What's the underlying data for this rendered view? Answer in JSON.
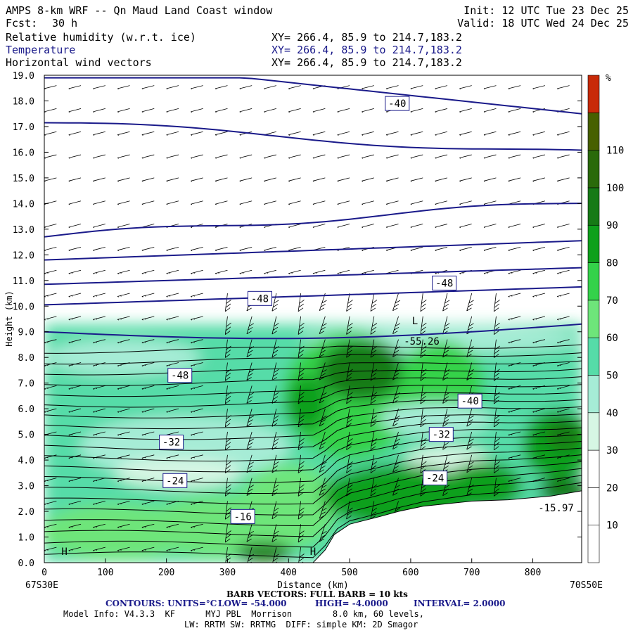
{
  "header": {
    "title": "AMPS 8-km WRF -- Qn Maud Land Coast window",
    "fcst_label": "Fcst:",
    "fcst_value": "30 h",
    "init": "Init: 12 UTC Tue 23 Dec 25",
    "valid": "Valid: 18 UTC Wed 24 Dec 25",
    "fields": [
      {
        "name": "Relative humidity (w.r.t. ice)",
        "xy": "XY= 266.4, 85.9 to 214.7,183.2"
      },
      {
        "name": "Temperature",
        "xy": "XY= 266.4, 85.9 to 214.7,183.2"
      },
      {
        "name": "Horizontal wind vectors",
        "xy": "XY= 266.4, 85.9 to 214.7,183.2"
      }
    ]
  },
  "chart_data": {
    "type": "heatmap",
    "title": "AMPS 8-km WRF -- Qn Maud Land Coast window",
    "xlabel": "Distance (km)",
    "ylabel": "Height (km)",
    "xlim": [
      0,
      880
    ],
    "ylim": [
      0,
      19
    ],
    "x_ticks": [
      0,
      100,
      200,
      300,
      400,
      500,
      600,
      700,
      800
    ],
    "y_ticks": [
      "0.0",
      "1.0",
      "2.0",
      "3.0",
      "4.0",
      "5.0",
      "6.0",
      "7.0",
      "8.0",
      "9.0",
      "10.0",
      "11.0",
      "12.0",
      "13.0",
      "14.0",
      "15.0",
      "16.0",
      "17.0",
      "18.0",
      "19.0"
    ],
    "x_left_label": "67S30E",
    "x_right_label": "70S50E",
    "colorbar": {
      "unit": "%",
      "levels": [
        10,
        20,
        30,
        40,
        50,
        60,
        70,
        80,
        90,
        100,
        110
      ],
      "colors": [
        "#ffffff",
        "#ffffff",
        "#ffffff",
        "#d6f6e4",
        "#a6ecd6",
        "#56dca8",
        "#6ee57a",
        "#34d24a",
        "#0ea01c",
        "#167a16",
        "#2a6a0a",
        "#476000",
        "#c82a08"
      ]
    },
    "temperature_contours": {
      "units": "°C",
      "low": "-54.000",
      "high": "-4.0000",
      "interval": "2.0000"
    },
    "contour_labels": [
      {
        "text": "-40",
        "x": 578,
        "y": 17.9
      },
      {
        "text": "-48",
        "x": 655,
        "y": 10.9
      },
      {
        "text": "-48",
        "x": 353,
        "y": 10.3
      },
      {
        "text": "-48",
        "x": 222,
        "y": 7.3
      },
      {
        "text": "-40",
        "x": 697,
        "y": 6.3
      },
      {
        "text": "-32",
        "x": 650,
        "y": 5.0
      },
      {
        "text": "-32",
        "x": 208,
        "y": 4.7
      },
      {
        "text": "-24",
        "x": 640,
        "y": 3.3
      },
      {
        "text": "-24",
        "x": 214,
        "y": 3.2
      },
      {
        "text": "-16",
        "x": 325,
        "y": 1.8
      }
    ],
    "extrema": [
      {
        "text": "L",
        "x": 607,
        "y": 9.3
      },
      {
        "text": "-55.26",
        "x": 618,
        "y": 8.5
      },
      {
        "text": "-15.97",
        "x": 838,
        "y": 2.0
      },
      {
        "text": "H",
        "x": 33,
        "y": 0.3
      },
      {
        "text": "H",
        "x": 440,
        "y": 0.3
      }
    ],
    "terrain": [
      [
        440,
        0
      ],
      [
        460,
        0.5
      ],
      [
        475,
        1.1
      ],
      [
        500,
        1.5
      ],
      [
        525,
        1.65
      ],
      [
        550,
        1.8
      ],
      [
        580,
        2.0
      ],
      [
        620,
        2.2
      ],
      [
        660,
        2.3
      ],
      [
        700,
        2.4
      ],
      [
        760,
        2.45
      ],
      [
        830,
        2.6
      ],
      [
        880,
        2.8
      ]
    ]
  },
  "footer": {
    "barb_text": "BARB VECTORS: FULL BARB = 10 kts",
    "contours_label": "CONTOURS: UNITS=°C",
    "low_label": "LOW= -54.000",
    "high_label": "HIGH= -4.0000",
    "interval_label": "INTERVAL= 2.0000",
    "model_info": "Model Info: V4.3.3  KF      MYJ PBL  Morrison        8.0 km, 60 levels,",
    "model_info2": "LW: RRTM SW: RRTMG  DIFF: simple KM: 2D Smagor"
  }
}
